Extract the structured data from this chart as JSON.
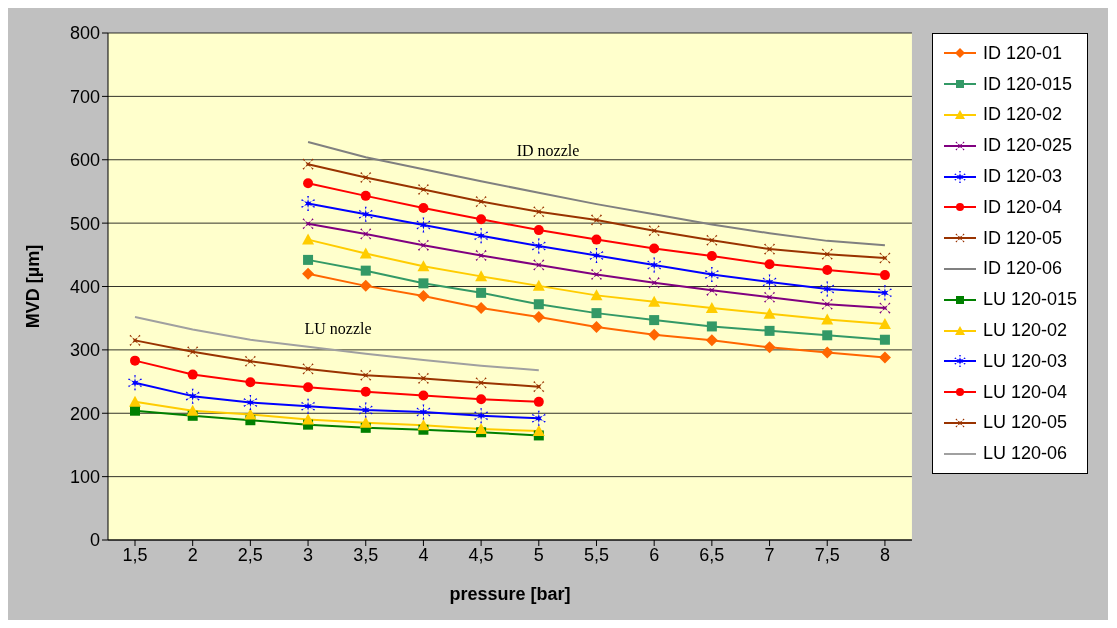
{
  "chart_data": {
    "type": "line",
    "xlabel": "pressure  [bar]",
    "ylabel": "MVD [µm]",
    "categories": [
      "1,5",
      "2",
      "2,5",
      "3",
      "3,5",
      "4",
      "4,5",
      "5",
      "5,5",
      "6",
      "6,5",
      "7",
      "7,5",
      "8"
    ],
    "ylim": [
      0,
      800
    ],
    "yticks": [
      0,
      100,
      200,
      300,
      400,
      500,
      600,
      700,
      800
    ],
    "grid": "y",
    "legend": "right",
    "annotations": [
      "ID nozzle",
      "LU nozzle"
    ],
    "series": [
      {
        "name": "ID 120-01",
        "color": "#ff6600",
        "marker": "diamond",
        "values": [
          null,
          null,
          null,
          420,
          401,
          385,
          366,
          352,
          336,
          324,
          315,
          304,
          296,
          288
        ]
      },
      {
        "name": "ID 120-015",
        "color": "#339966",
        "marker": "square",
        "values": [
          null,
          null,
          null,
          442,
          425,
          405,
          390,
          372,
          358,
          347,
          337,
          330,
          323,
          316
        ]
      },
      {
        "name": "ID 120-02",
        "color": "#ffcc00",
        "marker": "triangle",
        "values": [
          null,
          null,
          null,
          474,
          452,
          432,
          416,
          401,
          386,
          376,
          366,
          357,
          348,
          341
        ]
      },
      {
        "name": "ID 120-025",
        "color": "#800080",
        "marker": "cross",
        "values": [
          null,
          null,
          null,
          499,
          483,
          465,
          449,
          434,
          419,
          406,
          394,
          383,
          372,
          366
        ]
      },
      {
        "name": "ID 120-03",
        "color": "#0000ff",
        "marker": "star",
        "values": [
          null,
          null,
          null,
          531,
          514,
          497,
          480,
          464,
          449,
          434,
          419,
          407,
          396,
          390
        ]
      },
      {
        "name": "ID 120-04",
        "color": "#ff0000",
        "marker": "circle",
        "values": [
          null,
          null,
          null,
          563,
          543,
          524,
          506,
          489,
          474,
          460,
          448,
          435,
          426,
          418
        ]
      },
      {
        "name": "ID 120-05",
        "color": "#993300",
        "marker": "cross",
        "values": [
          null,
          null,
          null,
          593,
          572,
          553,
          534,
          518,
          505,
          488,
          473,
          459,
          451,
          445
        ]
      },
      {
        "name": "ID 120-06",
        "color": "#808080",
        "marker": "none",
        "values": [
          null,
          null,
          null,
          628,
          604,
          585,
          566,
          548,
          530,
          514,
          498,
          484,
          472,
          465
        ]
      },
      {
        "name": "LU 120-015",
        "color": "#008000",
        "marker": "square",
        "values": [
          204,
          196,
          189,
          182,
          177,
          174,
          170,
          165,
          null,
          null,
          null,
          null,
          null,
          null
        ]
      },
      {
        "name": "LU 120-02",
        "color": "#ffcc00",
        "marker": "triangle",
        "values": [
          218,
          204,
          198,
          190,
          185,
          181,
          175,
          172,
          null,
          null,
          null,
          null,
          null,
          null
        ]
      },
      {
        "name": "LU 120-03",
        "color": "#0000ff",
        "marker": "star",
        "values": [
          248,
          227,
          217,
          211,
          205,
          202,
          196,
          192,
          null,
          null,
          null,
          null,
          null,
          null
        ]
      },
      {
        "name": "LU 120-04",
        "color": "#ff0000",
        "marker": "circle",
        "values": [
          283,
          261,
          249,
          241,
          234,
          228,
          222,
          218,
          null,
          null,
          null,
          null,
          null,
          null
        ]
      },
      {
        "name": "LU 120-05",
        "color": "#993300",
        "marker": "cross",
        "values": [
          315,
          297,
          282,
          270,
          260,
          255,
          248,
          242,
          null,
          null,
          null,
          null,
          null,
          null
        ]
      },
      {
        "name": "LU 120-06",
        "color": "#a0a0a0",
        "marker": "none",
        "values": [
          352,
          332,
          316,
          305,
          294,
          284,
          275,
          268,
          null,
          null,
          null,
          null,
          null,
          null
        ]
      }
    ]
  }
}
